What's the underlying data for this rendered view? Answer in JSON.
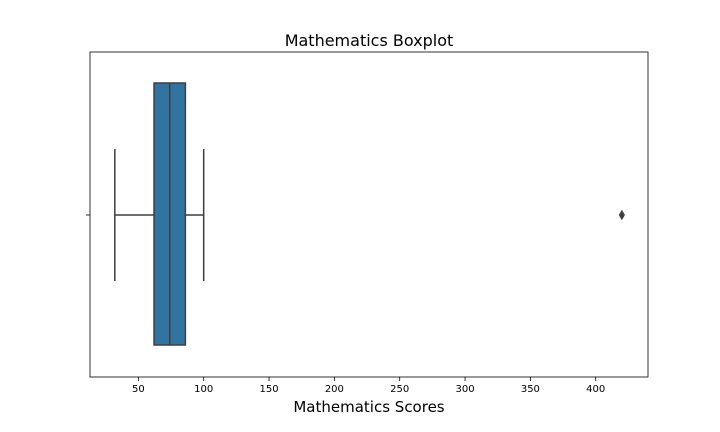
{
  "chart_data": {
    "type": "boxplot",
    "title": "Mathematics Boxplot",
    "xlabel": "Mathematics Scores",
    "ylabel": "",
    "orientation": "horizontal",
    "xlim": [
      13,
      440
    ],
    "xticks": [
      50,
      100,
      150,
      200,
      250,
      300,
      350,
      400
    ],
    "grid": false,
    "box": {
      "whisker_low": 32,
      "q1": 62,
      "median": 74,
      "q3": 86,
      "whisker_high": 100,
      "fliers": [
        420
      ]
    },
    "colors": {
      "box_fill": "#3274a1",
      "line": "#3f3f3f",
      "axes": "#000000"
    }
  }
}
